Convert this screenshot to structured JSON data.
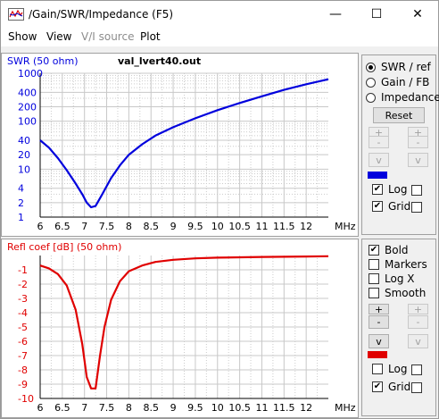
{
  "window": {
    "title": "/Gain/SWR/Impedance (F5)",
    "minimize": "—",
    "maximize": "☐",
    "close": "✕"
  },
  "menu": [
    "Show",
    "View",
    "V/I source",
    "Plot"
  ],
  "colors": {
    "swr": "#0000dd",
    "refl": "#e00000",
    "grid": "#c8c8c8"
  },
  "filename": "val_lvert40.out",
  "chart_data": [
    {
      "type": "line",
      "ylabel": "SWR (50 ohm)",
      "xlabel": "MHz",
      "yscale": "log",
      "grid": true,
      "xlim": [
        6,
        12.5
      ],
      "ylim": [
        1,
        1000
      ],
      "x_ticks": [
        "6",
        "6.5",
        "7",
        "7.5",
        "8",
        "8.5",
        "9",
        "9.5",
        "10",
        "10.5",
        "11",
        "11.5",
        "12"
      ],
      "y_ticks": [
        "1000",
        "400",
        "200",
        "100",
        "40",
        "20",
        "10",
        "4",
        "2",
        "1"
      ],
      "y_tick_values": [
        1000,
        400,
        200,
        100,
        40,
        20,
        10,
        4,
        2,
        1
      ],
      "series": [
        {
          "x": [
            6.0,
            6.2,
            6.4,
            6.6,
            6.8,
            6.95,
            7.05,
            7.15,
            7.25,
            7.4,
            7.6,
            7.8,
            8.0,
            8.3,
            8.6,
            9.0,
            9.5,
            10.0,
            10.5,
            11.0,
            11.5,
            12.0,
            12.5
          ],
          "y": [
            40,
            28,
            17,
            9.5,
            5,
            3,
            2,
            1.6,
            1.7,
            3,
            6.5,
            12,
            20,
            33,
            50,
            75,
            115,
            170,
            240,
            330,
            450,
            590,
            750
          ]
        }
      ]
    },
    {
      "type": "line",
      "ylabel": "Refl coef [dB] (50 ohm)",
      "xlabel": "MHz",
      "grid": true,
      "xlim": [
        6,
        12.5
      ],
      "ylim": [
        -10,
        0
      ],
      "x_ticks": [
        "6",
        "6.5",
        "7",
        "7.5",
        "8",
        "8.5",
        "9",
        "9.5",
        "10",
        "10.5",
        "11",
        "11.5",
        "12"
      ],
      "y_ticks": [
        "-1",
        "-2",
        "-3",
        "-4",
        "-5",
        "-6",
        "-7",
        "-8",
        "-9",
        "-10"
      ],
      "y_tick_values": [
        -1,
        -2,
        -3,
        -4,
        -5,
        -6,
        -7,
        -8,
        -9,
        -10
      ],
      "series": [
        {
          "x": [
            6.0,
            6.2,
            6.4,
            6.6,
            6.8,
            6.95,
            7.05,
            7.15,
            7.25,
            7.35,
            7.45,
            7.6,
            7.8,
            8.0,
            8.3,
            8.6,
            9.0,
            9.5,
            10.0,
            11.0,
            12.0,
            12.5
          ],
          "y": [
            -0.7,
            -0.9,
            -1.3,
            -2.1,
            -3.8,
            -6.2,
            -8.5,
            -9.3,
            -9.3,
            -7.0,
            -5.0,
            -3.1,
            -1.8,
            -1.1,
            -0.7,
            -0.45,
            -0.3,
            -0.2,
            -0.15,
            -0.1,
            -0.07,
            -0.05
          ]
        }
      ]
    }
  ],
  "panel_top": {
    "radios": [
      {
        "label": "SWR / ref",
        "selected": true
      },
      {
        "label": "Gain / FB",
        "selected": false
      },
      {
        "label": "Impedance",
        "selected": false
      }
    ],
    "reset": "Reset",
    "plus": "+",
    "minus": "-",
    "down": "v",
    "log": {
      "label": "Log",
      "checked": true
    },
    "grid": {
      "label": "Grid",
      "checked": true
    }
  },
  "panel_bottom": {
    "bold": {
      "label": "Bold",
      "checked": true
    },
    "markers": {
      "label": "Markers",
      "checked": false
    },
    "logx": {
      "label": "Log X",
      "checked": false
    },
    "smooth": {
      "label": "Smooth",
      "checked": false
    },
    "plus": "+",
    "minus": "-",
    "down": "v",
    "log": {
      "label": "Log",
      "checked": false
    },
    "grid": {
      "label": "Grid",
      "checked": true
    }
  }
}
